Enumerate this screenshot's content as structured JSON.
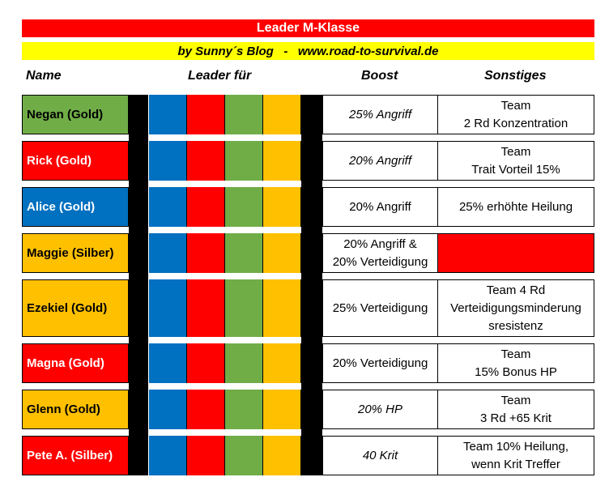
{
  "title": "Leader M-Klasse",
  "subtitle": "by Sunny´s Blog   -   www.road-to-survival.de",
  "headers": {
    "name": "Name",
    "leader": "Leader für",
    "boost": "Boost",
    "other": "Sonstiges"
  },
  "colors": {
    "blue": "#0070c0",
    "red": "#ff0000",
    "green": "#70ad47",
    "gold": "#ffc000",
    "black": "#000000"
  },
  "rows": [
    {
      "name": "Negan (Gold)",
      "name_color": "#70ad47",
      "name_text_color": "#000000",
      "boost": "25% Angriff",
      "boost_italic": true,
      "other": "Team\n2 Rd Konzentration",
      "other_fill": ""
    },
    {
      "name": "Rick (Gold)",
      "name_color": "#ff0000",
      "name_text_color": "#ffffff",
      "boost": "20% Angriff",
      "boost_italic": true,
      "other": "Team\nTrait Vorteil 15%",
      "other_fill": ""
    },
    {
      "name": "Alice (Gold)",
      "name_color": "#0070c0",
      "name_text_color": "#ffffff",
      "boost": "20% Angriff",
      "boost_italic": false,
      "other": "25% erhöhte Heilung",
      "other_fill": ""
    },
    {
      "name": "Maggie (Silber)",
      "name_color": "#ffc000",
      "name_text_color": "#000000",
      "boost": "20% Angriff &\n20% Verteidigung",
      "boost_italic": false,
      "other": "",
      "other_fill": "#ff0000"
    },
    {
      "name": "Ezekiel (Gold)",
      "name_color": "#ffc000",
      "name_text_color": "#000000",
      "boost": "25% Verteidigung",
      "boost_italic": false,
      "other": "Team 4 Rd\nVerteidigungsminderung\nsresistenz",
      "other_fill": ""
    },
    {
      "name": "Magna (Gold)",
      "name_color": "#ff0000",
      "name_text_color": "#ffffff",
      "boost": "20% Verteidigung",
      "boost_italic": false,
      "other": "Team\n15% Bonus HP",
      "other_fill": ""
    },
    {
      "name": "Glenn  (Gold)",
      "name_color": "#ffc000",
      "name_text_color": "#000000",
      "boost": "20% HP",
      "boost_italic": true,
      "other": "Team\n3 Rd +65 Krit",
      "other_fill": ""
    },
    {
      "name": "Pete A. (Silber)",
      "name_color": "#ff0000",
      "name_text_color": "#ffffff",
      "boost": "40 Krit",
      "boost_italic": true,
      "other": "Team 10% Heilung,\nwenn Krit Treffer",
      "other_fill": ""
    }
  ]
}
